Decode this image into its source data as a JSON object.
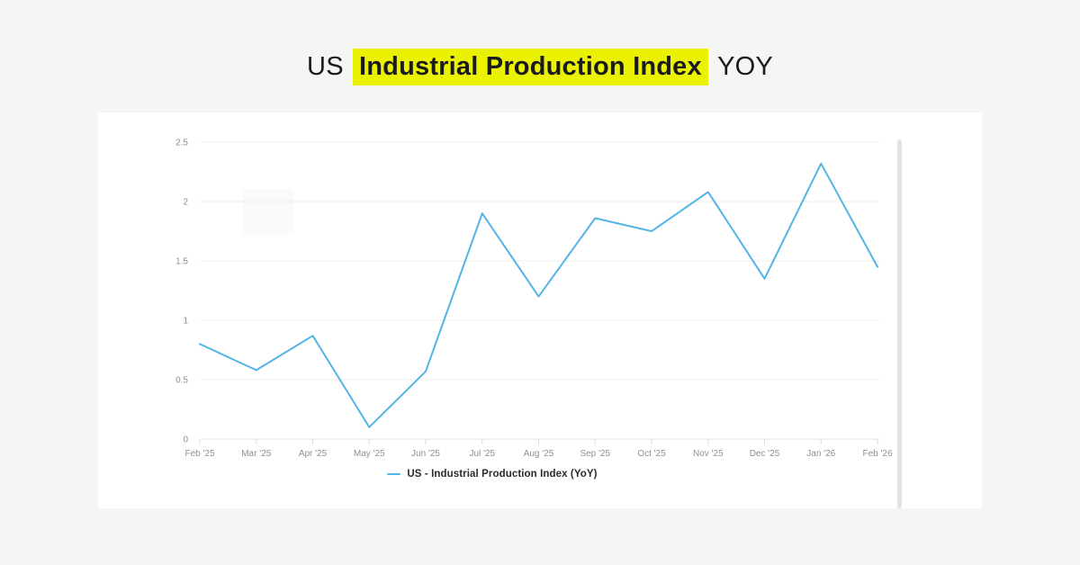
{
  "title": {
    "prefix": "US",
    "highlight": "Industrial Production Index",
    "suffix": "YOY"
  },
  "colors": {
    "page_background": "#f5f5f4",
    "card_background": "#ffffff",
    "title_text": "#1b1b1e",
    "highlight_background": "#eaf202",
    "line": "#52b5e5",
    "grid": "#efefef",
    "axis": "#e0e0e0",
    "tick": "#dddddd",
    "axis_label": "#8f8f8f",
    "legend_text": "#2b2b2b",
    "scrollbar": "#dce3e9"
  },
  "chart_data": {
    "type": "line",
    "title": "US Industrial Production Index YOY",
    "categories": [
      "Feb '25",
      "Mar '25",
      "Apr '25",
      "May '25",
      "Jun '25",
      "Jul '25",
      "Aug '25",
      "Sep '25",
      "Oct '25",
      "Nov '25",
      "Dec '25",
      "Jan '26",
      "Feb '26"
    ],
    "series": [
      {
        "name": "US - Industrial Production Index (YoY)",
        "values": [
          0.8,
          0.58,
          0.87,
          0.1,
          0.57,
          1.9,
          1.2,
          1.86,
          1.75,
          2.08,
          1.35,
          2.32,
          1.45
        ]
      }
    ],
    "xlabel": "",
    "ylabel": "",
    "ylim": [
      0,
      2.5
    ],
    "yticks": [
      0,
      0.5,
      1,
      1.5,
      2,
      2.5
    ],
    "ytick_labels": [
      "0",
      "0.5",
      "1",
      "1.5",
      "2",
      "2.5"
    ],
    "grid": true,
    "legend_position": "bottom-center"
  }
}
